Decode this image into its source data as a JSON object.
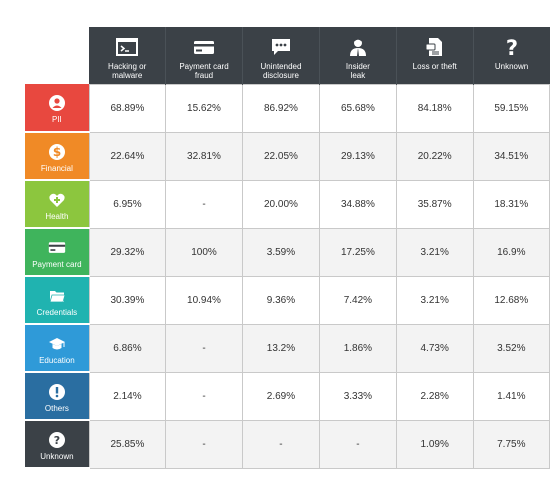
{
  "chart_data": {
    "type": "table",
    "columns": [
      {
        "label": "Hacking or\nmalware",
        "icon": "terminal-icon"
      },
      {
        "label": "Payment card\nfraud",
        "icon": "credit-card-icon"
      },
      {
        "label": "Unintended\ndisclosure",
        "icon": "speech-bubble-icon"
      },
      {
        "label": "Insider\nleak",
        "icon": "insider-person-icon"
      },
      {
        "label": "Loss or theft",
        "icon": "document-icon"
      },
      {
        "label": "Unknown",
        "icon": "question-mark-icon"
      }
    ],
    "rows": [
      {
        "label": "PII",
        "icon": "user-icon",
        "color": "#e8483f",
        "values": [
          "68.89%",
          "15.62%",
          "86.92%",
          "65.68%",
          "84.18%",
          "59.15%"
        ]
      },
      {
        "label": "Financial",
        "icon": "dollar-icon",
        "color": "#f08a26",
        "values": [
          "22.64%",
          "32.81%",
          "22.05%",
          "29.13%",
          "20.22%",
          "34.51%"
        ]
      },
      {
        "label": "Health",
        "icon": "heart-icon",
        "color": "#8cc63e",
        "values": [
          "6.95%",
          "-",
          "20.00%",
          "34.88%",
          "35.87%",
          "18.31%"
        ]
      },
      {
        "label": "Payment card",
        "icon": "credit-card-icon",
        "color": "#3fb45c",
        "values": [
          "29.32%",
          "100%",
          "3.59%",
          "17.25%",
          "3.21%",
          "16.9%"
        ]
      },
      {
        "label": "Credentials",
        "icon": "folder-icon",
        "color": "#20b3b0",
        "values": [
          "30.39%",
          "10.94%",
          "9.36%",
          "7.42%",
          "3.21%",
          "12.68%"
        ]
      },
      {
        "label": "Education",
        "icon": "graduation-cap-icon",
        "color": "#2f9ad8",
        "values": [
          "6.86%",
          "-",
          "13.2%",
          "1.86%",
          "4.73%",
          "3.52%"
        ]
      },
      {
        "label": "Others",
        "icon": "exclamation-icon",
        "color": "#2a6ea1",
        "values": [
          "2.14%",
          "-",
          "2.69%",
          "3.33%",
          "2.28%",
          "1.41%"
        ]
      },
      {
        "label": "Unknown",
        "icon": "question-circle-icon",
        "color": "#3b4147",
        "values": [
          "25.85%",
          "-",
          "-",
          "-",
          "1.09%",
          "7.75%"
        ]
      }
    ]
  }
}
